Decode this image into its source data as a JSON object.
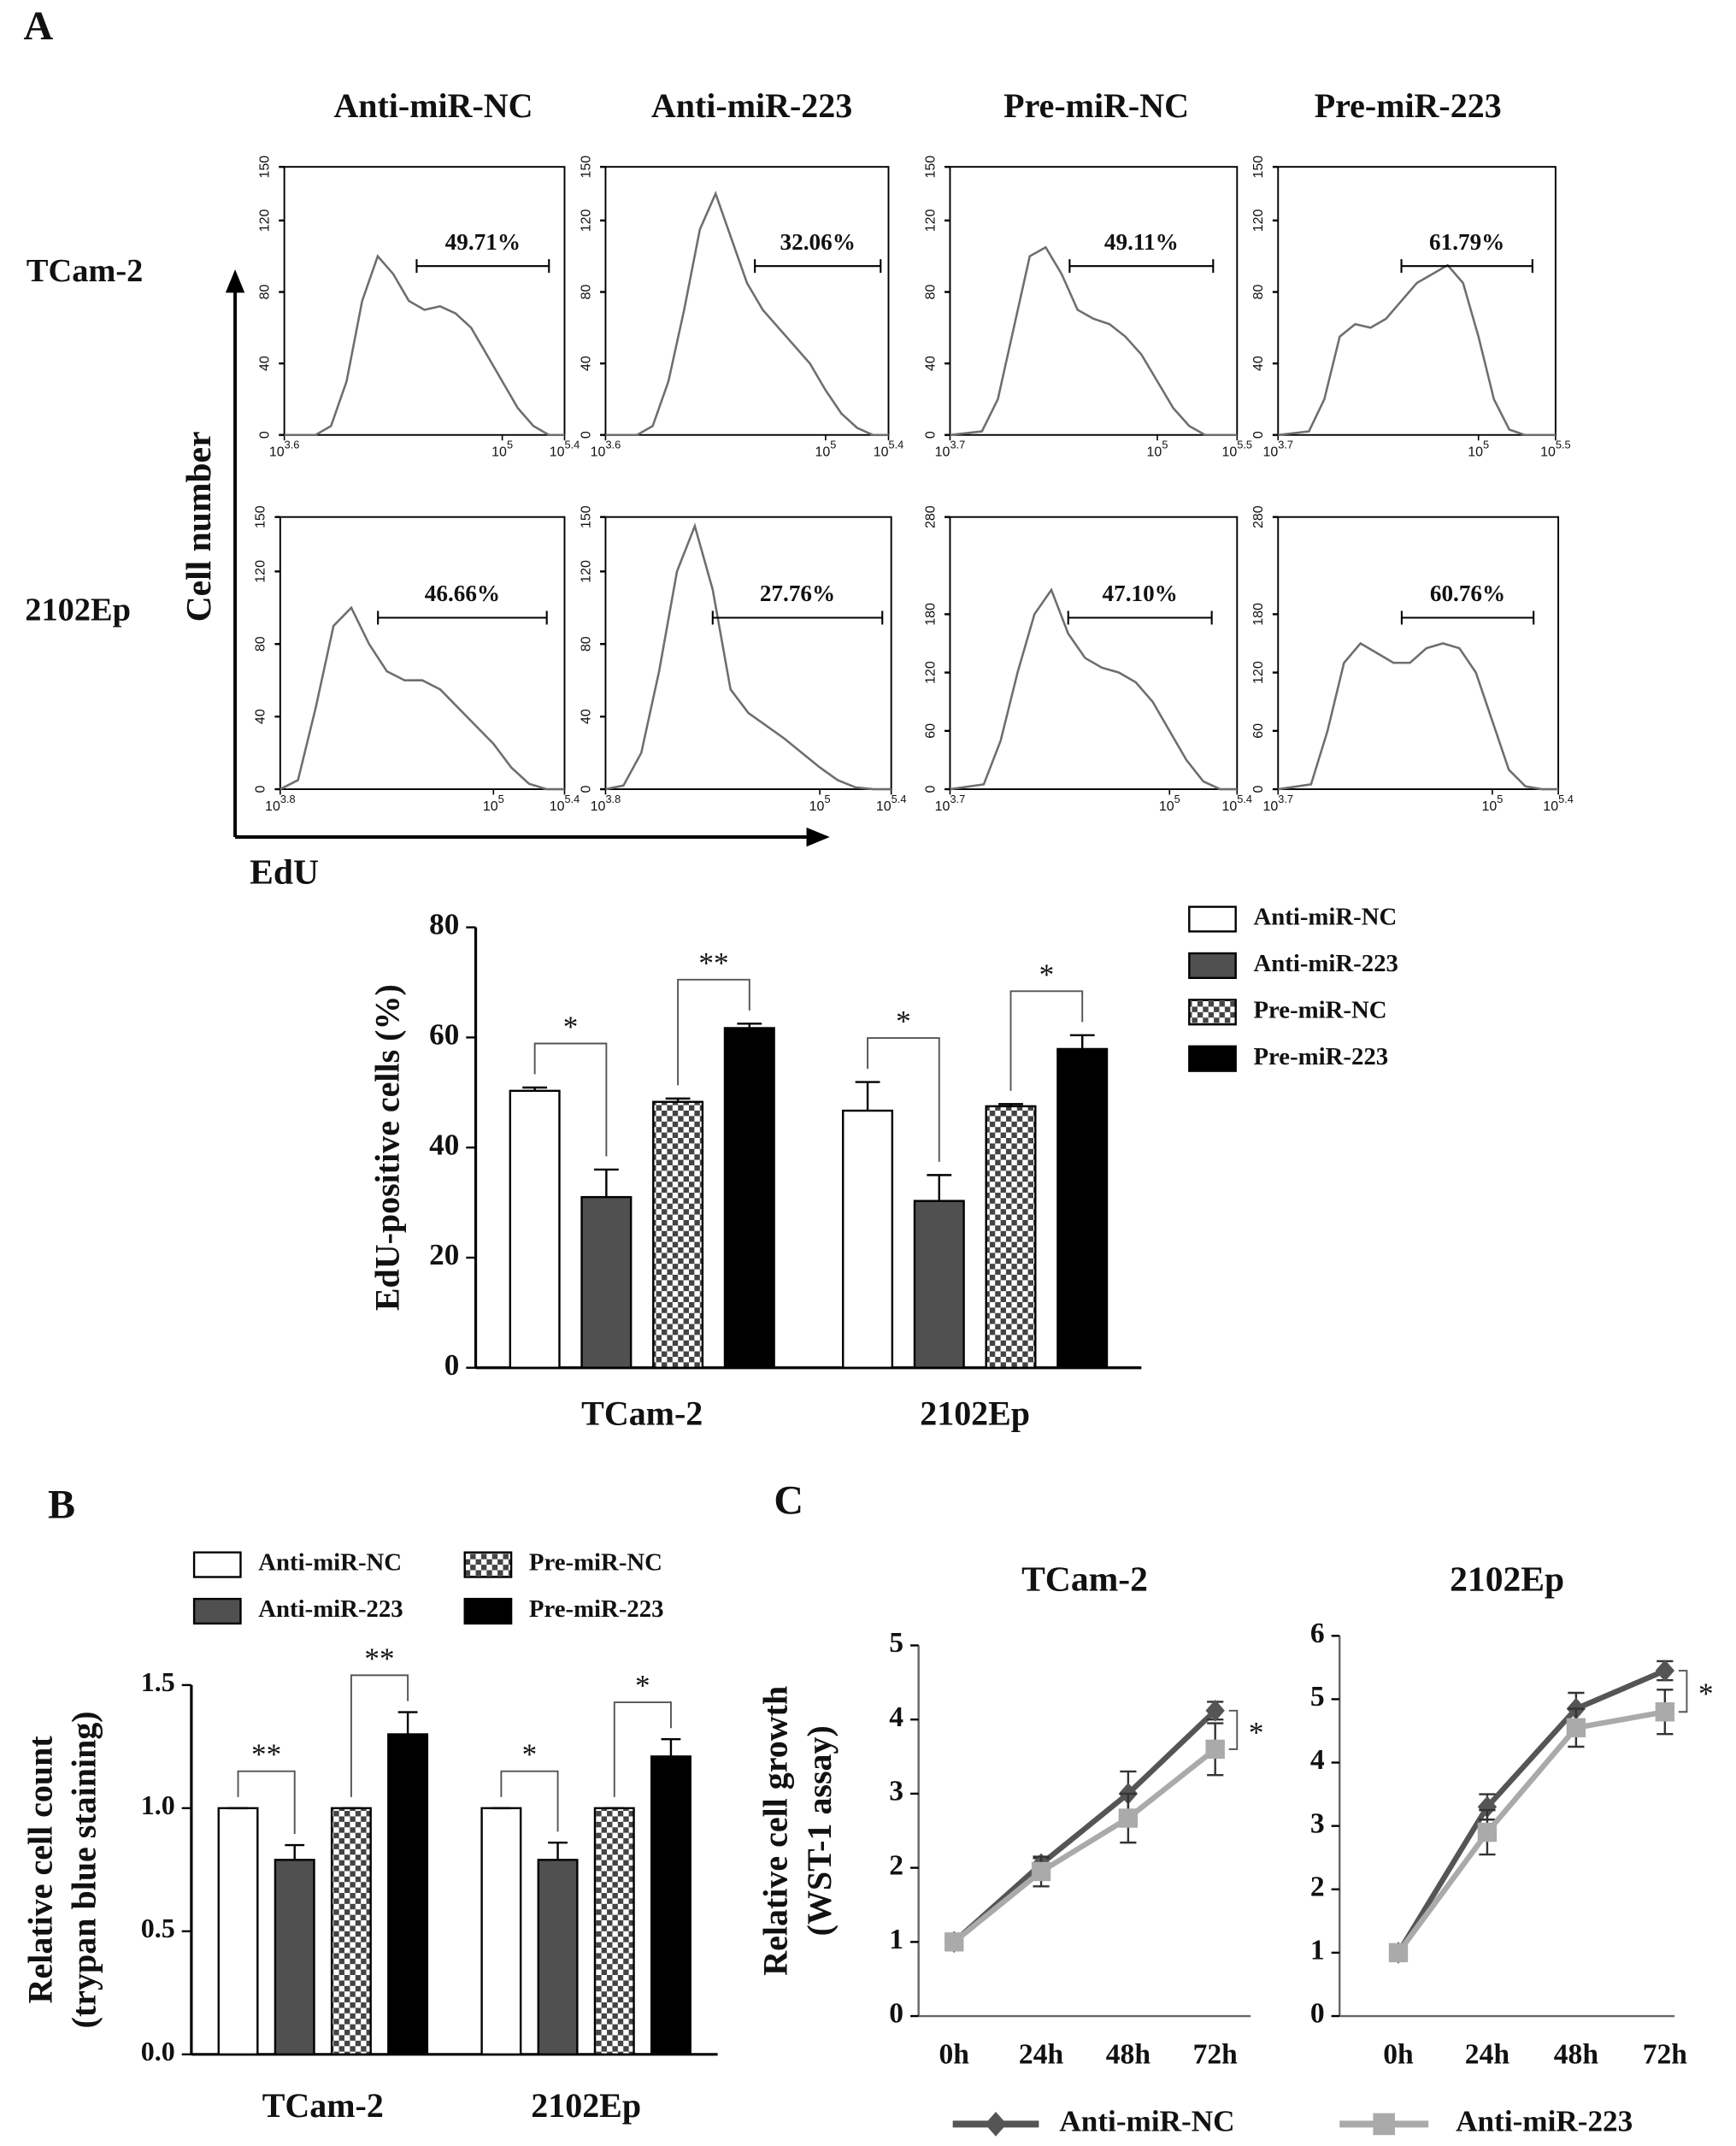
{
  "figure": {
    "panel_labels": [
      "A",
      "B",
      "C"
    ],
    "columns": [
      "Anti-miR-NC",
      "Anti-miR-223",
      "Pre-miR-NC",
      "Pre-miR-223"
    ],
    "rows": [
      "TCam-2",
      "2102Ep"
    ],
    "ylabel": "Cell number",
    "xlabel": "EdU"
  },
  "chart_data": [
    {
      "type": "line",
      "x": [
        3.6,
        3.8,
        3.9,
        4.0,
        4.1,
        4.2,
        4.3,
        4.4,
        4.5,
        4.6,
        4.7,
        4.8,
        4.9,
        5.0,
        5.1,
        5.2,
        5.3,
        5.4
      ],
      "values": [
        0,
        0,
        5,
        30,
        75,
        100,
        90,
        75,
        70,
        72,
        68,
        60,
        45,
        30,
        15,
        5,
        0,
        0
      ],
      "color": "#6e6e6e",
      "xlim": [
        3.6,
        5.4
      ],
      "ylim": [
        0,
        150
      ],
      "xticks": [
        3.6,
        5,
        5.4
      ],
      "xtick_base": "10",
      "yticks": [
        0,
        40,
        80,
        120,
        150
      ],
      "gate": {
        "label": "49.71%",
        "x": [
          4.45,
          5.3
        ]
      }
    },
    {
      "type": "line",
      "x": [
        3.6,
        3.8,
        3.9,
        4.0,
        4.1,
        4.2,
        4.3,
        4.4,
        4.5,
        4.6,
        4.7,
        4.8,
        4.9,
        5.0,
        5.1,
        5.2,
        5.3,
        5.4
      ],
      "values": [
        0,
        0,
        5,
        30,
        70,
        115,
        135,
        110,
        85,
        70,
        60,
        50,
        40,
        25,
        12,
        4,
        0,
        0
      ],
      "color": "#6e6e6e",
      "xlim": [
        3.6,
        5.4
      ],
      "ylim": [
        0,
        150
      ],
      "xticks": [
        3.6,
        5,
        5.4
      ],
      "xtick_base": "10",
      "yticks": [
        0,
        40,
        80,
        120,
        150
      ],
      "gate": {
        "label": "32.06%",
        "x": [
          4.55,
          5.35
        ]
      }
    },
    {
      "type": "line",
      "x": [
        3.7,
        3.9,
        4.0,
        4.1,
        4.2,
        4.3,
        4.4,
        4.5,
        4.6,
        4.7,
        4.8,
        4.9,
        5.0,
        5.1,
        5.2,
        5.3,
        5.5
      ],
      "values": [
        0,
        2,
        20,
        60,
        100,
        105,
        90,
        70,
        65,
        62,
        55,
        45,
        30,
        15,
        5,
        0,
        0
      ],
      "color": "#6e6e6e",
      "xlim": [
        3.7,
        5.5
      ],
      "ylim": [
        0,
        150
      ],
      "xticks": [
        3.7,
        5,
        5.5
      ],
      "xtick_base": "10",
      "yticks": [
        0,
        40,
        80,
        120,
        150
      ],
      "gate": {
        "label": "49.11%",
        "x": [
          4.45,
          5.35
        ]
      }
    },
    {
      "type": "line",
      "x": [
        3.7,
        3.9,
        4.0,
        4.1,
        4.2,
        4.3,
        4.4,
        4.5,
        4.6,
        4.7,
        4.8,
        4.9,
        5.0,
        5.1,
        5.2,
        5.3,
        5.5
      ],
      "values": [
        0,
        2,
        20,
        55,
        62,
        60,
        65,
        75,
        85,
        90,
        95,
        85,
        55,
        20,
        3,
        0,
        0
      ],
      "color": "#6e6e6e",
      "xlim": [
        3.7,
        5.5
      ],
      "ylim": [
        0,
        150
      ],
      "xticks": [
        3.7,
        5,
        5.5
      ],
      "xtick_base": "10",
      "yticks": [
        0,
        40,
        80,
        120,
        150
      ],
      "gate": {
        "label": "61.79%",
        "x": [
          4.5,
          5.35
        ]
      }
    },
    {
      "type": "line",
      "x": [
        3.8,
        3.9,
        4.0,
        4.1,
        4.2,
        4.3,
        4.4,
        4.5,
        4.6,
        4.7,
        4.8,
        4.9,
        5.0,
        5.1,
        5.2,
        5.3,
        5.4
      ],
      "values": [
        0,
        5,
        45,
        90,
        100,
        80,
        65,
        60,
        60,
        55,
        45,
        35,
        25,
        12,
        3,
        0,
        0
      ],
      "color": "#6e6e6e",
      "xlim": [
        3.8,
        5.4
      ],
      "ylim": [
        0,
        150
      ],
      "xticks": [
        3.8,
        5,
        5.4
      ],
      "xtick_base": "10",
      "yticks": [
        0,
        40,
        80,
        120,
        150
      ],
      "gate": {
        "label": "46.66%",
        "x": [
          4.35,
          5.3
        ]
      }
    },
    {
      "type": "line",
      "x": [
        3.8,
        3.9,
        4.0,
        4.1,
        4.2,
        4.3,
        4.4,
        4.5,
        4.6,
        4.7,
        4.8,
        4.9,
        5.0,
        5.1,
        5.2,
        5.3,
        5.4
      ],
      "values": [
        0,
        2,
        20,
        65,
        120,
        145,
        110,
        55,
        42,
        35,
        28,
        20,
        12,
        5,
        1,
        0,
        0
      ],
      "color": "#6e6e6e",
      "xlim": [
        3.8,
        5.4
      ],
      "ylim": [
        0,
        150
      ],
      "xticks": [
        3.8,
        5,
        5.4
      ],
      "xtick_base": "10",
      "yticks": [
        0,
        40,
        80,
        120,
        150
      ],
      "gate": {
        "label": "27.76%",
        "x": [
          4.4,
          5.35
        ]
      }
    },
    {
      "type": "line",
      "x": [
        3.7,
        3.9,
        4.0,
        4.1,
        4.2,
        4.3,
        4.4,
        4.5,
        4.6,
        4.7,
        4.8,
        4.9,
        5.0,
        5.1,
        5.2,
        5.3,
        5.4
      ],
      "values": [
        0,
        5,
        50,
        120,
        180,
        205,
        160,
        135,
        125,
        120,
        110,
        90,
        60,
        30,
        8,
        0,
        0
      ],
      "color": "#6e6e6e",
      "xlim": [
        3.7,
        5.4
      ],
      "ylim": [
        0,
        280
      ],
      "xticks": [
        3.7,
        5,
        5.4
      ],
      "xtick_base": "10",
      "yticks": [
        0,
        60,
        120,
        180,
        280
      ],
      "gate": {
        "label": "47.10%",
        "x": [
          4.4,
          5.25
        ]
      }
    },
    {
      "type": "line",
      "x": [
        3.7,
        3.9,
        4.0,
        4.1,
        4.2,
        4.3,
        4.4,
        4.5,
        4.6,
        4.7,
        4.8,
        4.9,
        5.0,
        5.1,
        5.2,
        5.3,
        5.4
      ],
      "values": [
        0,
        5,
        60,
        130,
        150,
        140,
        130,
        130,
        145,
        150,
        145,
        120,
        70,
        20,
        3,
        0,
        0
      ],
      "color": "#6e6e6e",
      "xlim": [
        3.7,
        5.4
      ],
      "ylim": [
        0,
        280
      ],
      "xticks": [
        3.7,
        5,
        5.4
      ],
      "xtick_base": "10",
      "yticks": [
        0,
        60,
        120,
        180,
        280
      ],
      "gate": {
        "label": "60.76%",
        "x": [
          4.45,
          5.25
        ]
      }
    },
    {
      "type": "bar",
      "categories": [
        "TCam-2",
        "2102Ep"
      ],
      "series": [
        {
          "name": "Anti-miR-NC",
          "color": "#ffffff",
          "values": [
            50.3,
            46.7
          ],
          "errors": [
            0.6,
            5.2
          ]
        },
        {
          "name": "Anti-miR-223",
          "color": "#505050",
          "values": [
            31,
            30.3
          ],
          "errors": [
            5,
            4.7
          ]
        },
        {
          "name": "Pre-miR-NC",
          "color": "#888888",
          "pattern": "checker",
          "values": [
            48.3,
            47.5
          ],
          "errors": [
            0.6,
            0.4
          ]
        },
        {
          "name": "Pre-miR-223",
          "color": "#000000",
          "values": [
            61.7,
            57.9
          ],
          "errors": [
            0.8,
            2.5
          ]
        }
      ],
      "ylim": [
        0,
        80
      ],
      "yticks": [
        0,
        20,
        40,
        60,
        80
      ],
      "ylabel": [
        "EdU-positive cells (%)"
      ],
      "significance": [
        [
          "*",
          "**"
        ],
        [
          "*",
          "*"
        ]
      ],
      "legend": "right"
    },
    {
      "type": "bar",
      "categories": [
        "TCam-2",
        "2102Ep"
      ],
      "series": [
        {
          "name": "Anti-miR-NC",
          "color": "#ffffff",
          "values": [
            1.0,
            1.0
          ],
          "errors": [
            0,
            0
          ]
        },
        {
          "name": "Anti-miR-223",
          "color": "#505050",
          "values": [
            0.79,
            0.79
          ],
          "errors": [
            0.06,
            0.07
          ]
        },
        {
          "name": "Pre-miR-NC",
          "color": "#888888",
          "pattern": "checker",
          "values": [
            1.0,
            1.0
          ],
          "errors": [
            0,
            0
          ]
        },
        {
          "name": "Pre-miR-223",
          "color": "#000000",
          "values": [
            1.3,
            1.21
          ],
          "errors": [
            0.09,
            0.07
          ]
        }
      ],
      "ylim": [
        0,
        1.5
      ],
      "yticks": [
        {
          "value": 0,
          "label": "0.0"
        },
        0.5,
        {
          "value": 1,
          "label": "1.0"
        },
        1.5
      ],
      "ylabel": [
        "Relative cell count",
        "(trypan blue staining)"
      ],
      "significance": [
        [
          "**",
          "**"
        ],
        [
          "*",
          "*"
        ]
      ],
      "legend": "top"
    },
    {
      "type": "line",
      "title": "TCam-2",
      "categories": [
        "0h",
        "24h",
        "48h",
        "72h"
      ],
      "series": [
        {
          "name": "Anti-miR-NC",
          "color": "#555555",
          "marker": "diamond",
          "values": [
            1,
            2.05,
            3.0,
            4.12
          ],
          "errors": [
            0.05,
            0.08,
            0.3,
            0.12
          ]
        },
        {
          "name": "Anti-miR-223",
          "color": "#aaaaaa",
          "marker": "square",
          "values": [
            1,
            1.95,
            2.67,
            3.6
          ],
          "errors": [
            0.05,
            0.2,
            0.33,
            0.35
          ]
        }
      ],
      "ylim": [
        0,
        5
      ],
      "yticks": [
        0,
        1,
        2,
        3,
        4,
        5
      ],
      "ylabel": [
        "Relative cell growth",
        "(WST-1 assay)"
      ],
      "significance": "*",
      "legend": "bottom"
    },
    {
      "type": "line",
      "title": "2102Ep",
      "categories": [
        "0h",
        "24h",
        "48h",
        "72h"
      ],
      "series": [
        {
          "color": "#555555",
          "marker": "diamond",
          "values": [
            1,
            3.3,
            4.85,
            5.45
          ],
          "errors": [
            0,
            0.2,
            0.25,
            0.15
          ]
        },
        {
          "color": "#aaaaaa",
          "marker": "square",
          "values": [
            1,
            2.9,
            4.55,
            4.8
          ],
          "errors": [
            0,
            0.35,
            0.3,
            0.35
          ]
        }
      ],
      "ylim": [
        0,
        6
      ],
      "yticks": [
        0,
        1,
        2,
        3,
        4,
        5,
        6
      ],
      "significance": "*"
    }
  ]
}
